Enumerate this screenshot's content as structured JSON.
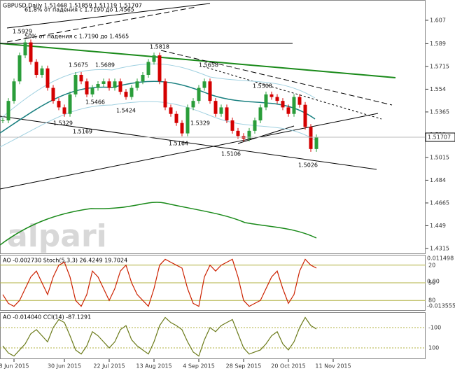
{
  "chart_data": {
    "type": "candlestick",
    "title": "GBPUSD,Daily  1.51468 1.51859 1.51119 1.51707",
    "watermark": "alpari",
    "fib_labels": [
      "61.8% от падения с 1.7190 до 1.4565",
      "50% от падения с 1.7190 до 1.4565"
    ],
    "annotations": [
      "1.5929",
      "1.5675",
      "1.5689",
      "1.5466",
      "1.5424",
      "1.5329",
      "1.5169",
      "1.5818",
      "1.5658",
      "1.5329",
      "1.5164",
      "1.5106",
      "1.5508",
      "1.5026"
    ],
    "last_price": 1.51707,
    "categories": [
      null,
      null,
      "8 Jun 2015",
      null,
      null,
      null,
      null,
      null,
      null,
      null,
      null,
      "30 Jun 2015",
      null,
      null,
      null,
      null,
      null,
      null,
      null,
      "22 Jul 2015",
      null,
      null,
      null,
      null,
      null,
      null,
      null,
      "13 Aug 2015",
      null,
      null,
      null,
      null,
      null,
      null,
      null,
      "4 Sep 2015",
      null,
      null,
      null,
      null,
      null,
      null,
      null,
      "28 Sep 2015",
      null,
      null,
      null,
      null,
      null,
      null,
      null,
      "20 Oct 2015",
      null,
      null,
      null,
      null,
      null,
      null,
      null,
      "11 Nov 2015"
    ],
    "series": [
      {
        "name": "GBPUSD",
        "color": "#d40000",
        "up_color": "#2a9d3a",
        "values": [
          1.53,
          1.545,
          1.56,
          1.58,
          1.59,
          1.575,
          1.565,
          1.57,
          1.555,
          1.545,
          1.54,
          1.535,
          1.55,
          1.565,
          1.56,
          1.55,
          1.555,
          1.558,
          1.56,
          1.555,
          1.56,
          1.552,
          1.548,
          1.555,
          1.56,
          1.565,
          1.575,
          1.58,
          1.56,
          1.54,
          1.535,
          1.528,
          1.52,
          1.54,
          1.545,
          1.555,
          1.56,
          1.545,
          1.535,
          1.54,
          1.53,
          1.522,
          1.518,
          1.516,
          1.522,
          1.53,
          1.54,
          1.55,
          1.548,
          1.545,
          1.54,
          1.535,
          1.548,
          1.542,
          1.525,
          1.508,
          1.517,
          null,
          null,
          null
        ]
      }
    ],
    "ylim": [
      1.6226,
      1.4277
    ],
    "yticks": [
      1.607,
      1.589,
      1.5715,
      1.554,
      1.5365,
      1.519,
      1.5015,
      1.484,
      1.4665,
      1.449,
      1.4315
    ],
    "stoch": {
      "title": "AO -0.002730  Stoch(5,3,3) 26.4249 19.7024",
      "color": "#cc2200",
      "ylim": [
        0,
        100
      ],
      "yticks": [
        80,
        50,
        20
      ],
      "axis_labels": [
        "0.011498",
        "0.00",
        "-0.013555"
      ],
      "values": [
        70,
        85,
        90,
        80,
        60,
        40,
        30,
        50,
        70,
        40,
        20,
        15,
        40,
        80,
        90,
        70,
        30,
        40,
        60,
        80,
        60,
        30,
        20,
        50,
        70,
        80,
        90,
        60,
        20,
        10,
        15,
        20,
        25,
        60,
        85,
        90,
        40,
        20,
        30,
        20,
        15,
        10,
        40,
        80,
        90,
        85,
        80,
        60,
        40,
        30,
        60,
        85,
        70,
        30,
        10,
        20,
        25,
        null,
        null,
        null
      ]
    },
    "cci": {
      "title": "AO -0.014040  CCI(14) -87.1291",
      "color": "#6b7a1a",
      "ylim": [
        -245,
        203
      ],
      "yticks": [
        100,
        -100
      ],
      "values": [
        80,
        150,
        180,
        120,
        60,
        -40,
        -80,
        -20,
        40,
        -100,
        -180,
        -150,
        -20,
        120,
        160,
        80,
        -60,
        -20,
        40,
        100,
        40,
        -80,
        -120,
        20,
        80,
        120,
        160,
        40,
        -120,
        -200,
        -150,
        -120,
        -80,
        40,
        140,
        180,
        20,
        -100,
        -60,
        -120,
        -150,
        -180,
        -40,
        100,
        160,
        140,
        120,
        60,
        -20,
        -60,
        60,
        120,
        40,
        -100,
        -200,
        -120,
        -87,
        null,
        null,
        null
      ]
    }
  }
}
